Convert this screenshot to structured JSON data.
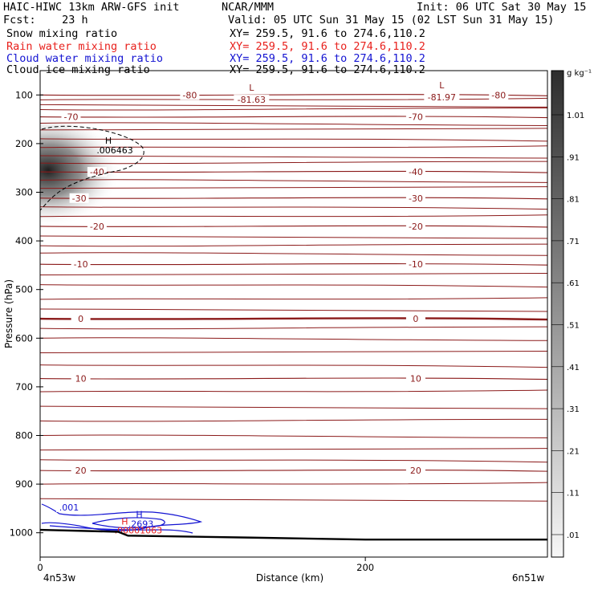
{
  "header": {
    "title_left": "HAIC-HIWC 13km ARW-GFS init",
    "title_center": "NCAR/MMM",
    "init": "Init: 06 UTC Sat 30 May 15",
    "fcst": "Fcst:    23 h",
    "valid": "Valid: 05 UTC Sun 31 May 15 (02 LST Sun 31 May 15)",
    "fields": [
      {
        "name": "Snow mixing ratio",
        "xy": "XY= 259.5, 91.6 to 274.6,110.2",
        "color": "#000000"
      },
      {
        "name": "Rain water mixing ratio",
        "xy": "XY= 259.5, 91.6 to 274.6,110.2",
        "color": "#e8211d"
      },
      {
        "name": "Cloud water mixing ratio",
        "xy": "XY= 259.5, 91.6 to 274.6,110.2",
        "color": "#1414d2"
      },
      {
        "name": "Cloud ice mixing ratio",
        "xy": "XY= 259.5, 91.6 to 274.6,110.2",
        "color": "#000000"
      }
    ]
  },
  "chart_data": {
    "type": "heatmap",
    "ylabel": "Pressure (hPa)",
    "xlabel": "Distance (km)",
    "x_start_label": "4n53w",
    "x_end_label": "6n51w",
    "xlim": [
      0,
      312
    ],
    "x_ticks": [
      0,
      200
    ],
    "ylim": [
      1050,
      50
    ],
    "y_ticks": [
      100,
      200,
      300,
      400,
      500,
      600,
      700,
      800,
      900,
      1000
    ],
    "temperature_contours": [
      {
        "label": "-80",
        "pressure": 100,
        "x_labels": [
          92,
          282
        ]
      },
      {
        "label": "-70",
        "pressure": 145,
        "x_labels": [
          19,
          231
        ]
      },
      {
        "label": "-40",
        "pressure": 258,
        "x_labels": [
          35,
          231
        ]
      },
      {
        "label": "-30",
        "pressure": 312,
        "x_labels": [
          24,
          231
        ]
      },
      {
        "label": "-20",
        "pressure": 370,
        "x_labels": [
          35,
          231
        ]
      },
      {
        "label": "-10",
        "pressure": 448,
        "x_labels": [
          25,
          231
        ]
      },
      {
        "label": "0",
        "pressure": 560,
        "x_labels": [
          25,
          231
        ]
      },
      {
        "label": "10",
        "pressure": 683,
        "x_labels": [
          25,
          231
        ]
      },
      {
        "label": "20",
        "pressure": 872,
        "x_labels": [
          25,
          231
        ]
      }
    ],
    "temperature_extrema": [
      {
        "label": "L",
        "value": "-81.63",
        "x": 130,
        "pressure": 98
      },
      {
        "label": "L",
        "value": "-81.97",
        "x": 247,
        "pressure": 93
      }
    ],
    "cloud_ice_max": {
      "label": "H",
      "value": ".006463",
      "x": 42,
      "pressure": 210
    },
    "cloud_water_max": {
      "label": "H",
      "value": ".2693",
      "x": 61,
      "pressure": 975
    },
    "cloud_water_contour_label": ".001",
    "rain_max": {
      "label": "H",
      "value": ".00001063",
      "x": 53,
      "pressure": 985
    },
    "snow_shading_max_location": {
      "x": 10,
      "pressure": 260
    },
    "surface_pressure": [
      {
        "x": 0,
        "p": 994
      },
      {
        "x": 48,
        "p": 998
      },
      {
        "x": 54,
        "p": 1006
      },
      {
        "x": 130,
        "p": 1010
      },
      {
        "x": 200,
        "p": 1014
      },
      {
        "x": 312,
        "p": 1014
      }
    ],
    "colorbar": {
      "unit": "g kg⁻¹",
      "tick_labels": [
        "1.01",
        ".91",
        ".81",
        ".71",
        ".61",
        ".51",
        ".41",
        ".31",
        ".21",
        ".11",
        ".01"
      ],
      "color_top": "#2d2d2d",
      "color_bottom": "#f7f7f7"
    },
    "colors": {
      "temperature": "#8b1a1a",
      "cloud_water": "#1414d2",
      "rain": "#e8211d"
    }
  }
}
